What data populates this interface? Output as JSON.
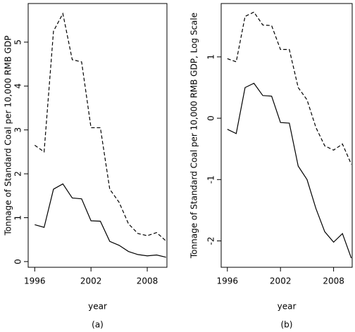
{
  "chart_data": [
    {
      "type": "line",
      "caption": "(a)",
      "xlabel": "year",
      "ylabel": "Tonnage of Standard Coal per 10,000 RMB GDP",
      "x": [
        1996,
        1997,
        1998,
        1999,
        2000,
        2001,
        2002,
        2003,
        2004,
        2005,
        2006,
        2007,
        2008,
        2009,
        2010
      ],
      "series": [
        {
          "color": "#000000",
          "linestyle": "dashed",
          "values": [
            2.65,
            2.5,
            5.25,
            5.65,
            4.6,
            4.55,
            3.05,
            3.05,
            1.65,
            1.35,
            0.86,
            0.64,
            0.59,
            0.66,
            0.47
          ]
        },
        {
          "color": "#000000",
          "linestyle": "solid",
          "values": [
            0.84,
            0.78,
            1.65,
            1.77,
            1.45,
            1.43,
            0.93,
            0.92,
            0.46,
            0.37,
            0.23,
            0.16,
            0.13,
            0.15,
            0.1
          ]
        }
      ],
      "xlim": [
        1995.3,
        2010.1
      ],
      "xticks": [
        1996,
        2002,
        2008
      ],
      "ylim": [
        -0.13,
        5.88
      ],
      "yticks": [
        0,
        1,
        2,
        3,
        4,
        5
      ]
    },
    {
      "type": "line",
      "caption": "(b)",
      "xlabel": "year",
      "ylabel": "Tonnage of Standard Coal per 10,000 RMB GDP, Log Scale",
      "x": [
        1996,
        1997,
        1998,
        1999,
        2000,
        2001,
        2002,
        2003,
        2004,
        2005,
        2006,
        2007,
        2008,
        2009,
        2010
      ],
      "series": [
        {
          "color": "#000000",
          "linestyle": "dashed",
          "values": [
            0.97,
            0.92,
            1.66,
            1.73,
            1.52,
            1.51,
            1.12,
            1.12,
            0.5,
            0.3,
            -0.15,
            -0.45,
            -0.52,
            -0.42,
            -0.75
          ]
        },
        {
          "color": "#000000",
          "linestyle": "solid",
          "values": [
            -0.18,
            -0.25,
            0.5,
            0.57,
            0.37,
            0.36,
            -0.07,
            -0.08,
            -0.78,
            -1.0,
            -1.47,
            -1.85,
            -2.02,
            -1.88,
            -2.28
          ]
        }
      ],
      "xlim": [
        1995.3,
        2010.1
      ],
      "xticks": [
        1996,
        2002,
        2008
      ],
      "ylim": [
        -2.43,
        1.87
      ],
      "yticks": [
        -2,
        -1,
        0,
        1
      ]
    }
  ]
}
